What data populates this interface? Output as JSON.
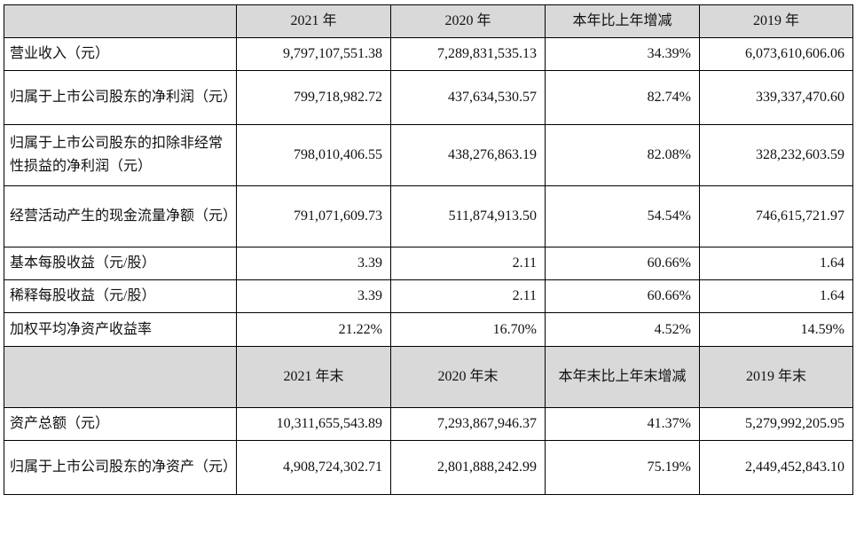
{
  "header1": [
    "",
    "2021 年",
    "2020 年",
    "本年比上年增减",
    "2019 年"
  ],
  "rows1": [
    {
      "label": "营业收入（元）",
      "v2021": "9,797,107,551.38",
      "v2020": "7,289,831,535.13",
      "change": "34.39%",
      "v2019": "6,073,610,606.06"
    },
    {
      "label": "归属于上市公司股东的净利润（元）",
      "v2021": "799,718,982.72",
      "v2020": "437,634,530.57",
      "change": "82.74%",
      "v2019": "339,337,470.60"
    },
    {
      "label": "归属于上市公司股东的扣除非经常性损益的净利润（元）",
      "v2021": "798,010,406.55",
      "v2020": "438,276,863.19",
      "change": "82.08%",
      "v2019": "328,232,603.59"
    },
    {
      "label": "经营活动产生的现金流量净额（元）",
      "v2021": "791,071,609.73",
      "v2020": "511,874,913.50",
      "change": "54.54%",
      "v2019": "746,615,721.97"
    },
    {
      "label": "基本每股收益（元/股）",
      "v2021": "3.39",
      "v2020": "2.11",
      "change": "60.66%",
      "v2019": "1.64"
    },
    {
      "label": "稀释每股收益（元/股）",
      "v2021": "3.39",
      "v2020": "2.11",
      "change": "60.66%",
      "v2019": "1.64"
    },
    {
      "label": "加权平均净资产收益率",
      "v2021": "21.22%",
      "v2020": "16.70%",
      "change": "4.52%",
      "v2019": "14.59%"
    }
  ],
  "header2": [
    "",
    "2021 年末",
    "2020 年末",
    "本年末比上年末增减",
    "2019 年末"
  ],
  "rows2": [
    {
      "label": "资产总额（元）",
      "v2021": "10,311,655,543.89",
      "v2020": "7,293,867,946.37",
      "change": "41.37%",
      "v2019": "5,279,992,205.95"
    },
    {
      "label": "归属于上市公司股东的净资产（元）",
      "v2021": "4,908,724,302.71",
      "v2020": "2,801,888,242.99",
      "change": "75.19%",
      "v2019": "2,449,452,843.10"
    }
  ]
}
